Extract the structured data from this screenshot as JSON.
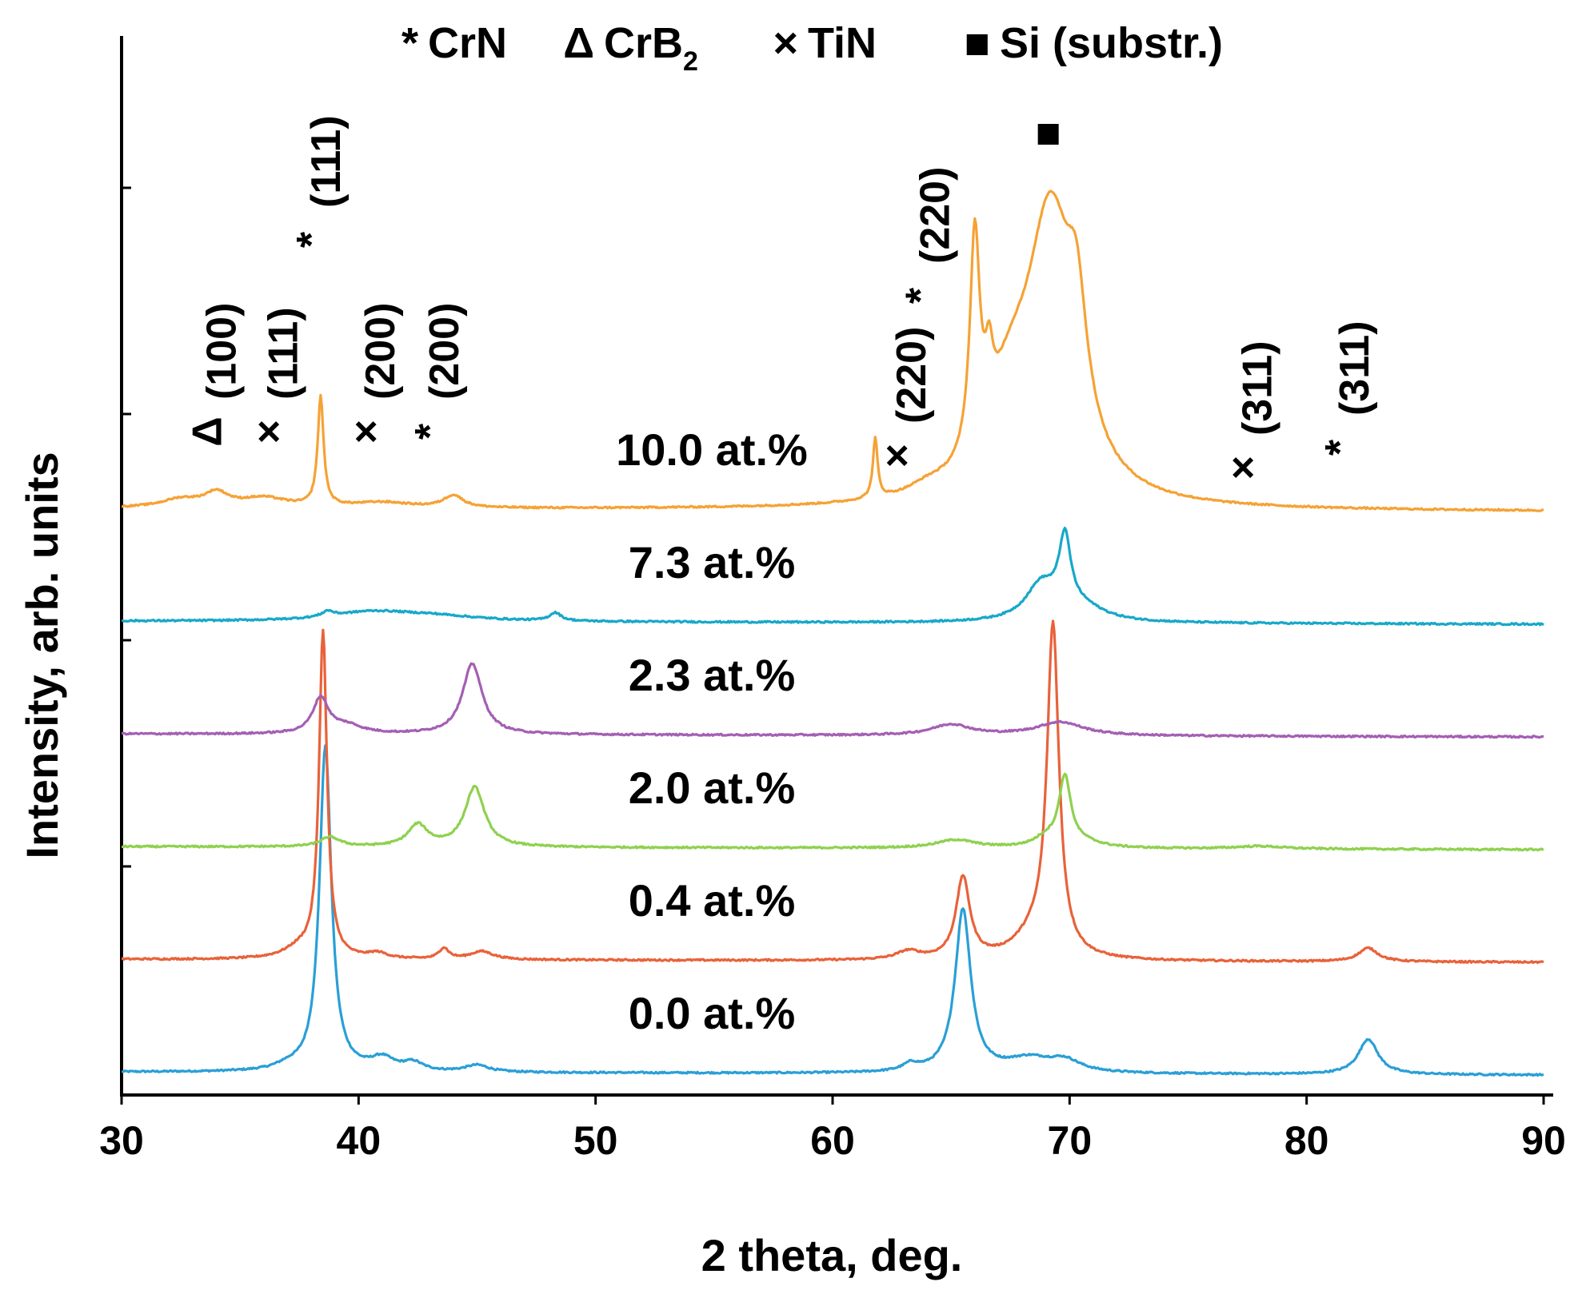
{
  "chart_data": {
    "type": "line",
    "title": "",
    "xlabel": "2 theta, deg.",
    "ylabel": "Intensity, arb. units",
    "xlim": [
      30,
      90
    ],
    "x_ticks": [
      "30",
      "40",
      "50",
      "60",
      "70",
      "80",
      "90"
    ],
    "y_ticks_labeled": false,
    "legend": [
      {
        "symbol": "*",
        "symbol_name": "asterisk",
        "label": "CrN",
        "label_sub": "",
        "color": "#1f3a8a"
      },
      {
        "symbol": "Δ",
        "symbol_name": "triangle",
        "label": "CrB",
        "label_sub": "2",
        "color": "#000000"
      },
      {
        "symbol": "×",
        "symbol_name": "cross",
        "label": "TiN",
        "label_sub": "",
        "color": "#1f5f7a"
      },
      {
        "symbol": "■",
        "symbol_name": "square",
        "label": "Si (substr.)",
        "label_sub": "",
        "color": "#000000"
      }
    ],
    "series": [
      {
        "name": "0.0 at.%",
        "color": "#2a9fd6",
        "baseline": 0.0,
        "background": 0.2,
        "peaks": [
          [
            37.0,
            0.15,
            0.6
          ],
          [
            38.6,
            12.0,
            0.3
          ],
          [
            41.0,
            0.45,
            0.6
          ],
          [
            42.3,
            0.3,
            0.5
          ],
          [
            45.0,
            0.25,
            0.6
          ],
          [
            63.3,
            0.25,
            0.4
          ],
          [
            65.5,
            6.0,
            0.4
          ],
          [
            68.3,
            0.5,
            1.2
          ],
          [
            69.8,
            0.4,
            0.8
          ],
          [
            82.6,
            1.3,
            0.5
          ]
        ]
      },
      {
        "name": "0.4 at.%",
        "color": "#e8623a",
        "baseline": 1.0,
        "background": 0.2,
        "peaks": [
          [
            37.5,
            0.35,
            0.8
          ],
          [
            38.5,
            12.0,
            0.2
          ],
          [
            40.8,
            0.2,
            0.5
          ],
          [
            43.6,
            0.4,
            0.25
          ],
          [
            45.2,
            0.3,
            0.6
          ],
          [
            63.2,
            0.3,
            0.6
          ],
          [
            65.5,
            3.0,
            0.35
          ],
          [
            68.5,
            0.8,
            1.0
          ],
          [
            69.3,
            12.0,
            0.3
          ],
          [
            82.6,
            0.5,
            0.5
          ]
        ]
      },
      {
        "name": "2.0 at.%",
        "color": "#8fd14f",
        "baseline": 2.0,
        "background": 0.2,
        "peaks": [
          [
            38.8,
            0.35,
            0.5
          ],
          [
            42.5,
            0.8,
            0.5
          ],
          [
            44.9,
            2.2,
            0.5
          ],
          [
            65.2,
            0.3,
            1.0
          ],
          [
            69.0,
            0.3,
            0.6
          ],
          [
            69.8,
            2.5,
            0.3
          ],
          [
            70.5,
            0.2,
            1.0
          ],
          [
            78.0,
            0.1,
            1.2
          ]
        ]
      },
      {
        "name": "2.3 at.%",
        "color": "#a45fb3",
        "baseline": 3.0,
        "background": 0.2,
        "peaks": [
          [
            38.4,
            1.3,
            0.4
          ],
          [
            39.5,
            0.3,
            0.8
          ],
          [
            44.8,
            2.6,
            0.5
          ],
          [
            65.0,
            0.4,
            1.0
          ],
          [
            69.6,
            0.5,
            1.2
          ]
        ]
      },
      {
        "name": "7.3 at.%",
        "color": "#17a8c9",
        "baseline": 4.0,
        "background": 0.2,
        "peaks": [
          [
            38.7,
            0.2,
            0.3
          ],
          [
            40.5,
            0.3,
            2.0
          ],
          [
            43.0,
            0.2,
            2.5
          ],
          [
            48.3,
            0.3,
            0.3
          ],
          [
            68.8,
            1.3,
            0.8
          ],
          [
            69.8,
            2.6,
            0.3
          ],
          [
            70.5,
            0.5,
            1.2
          ]
        ]
      },
      {
        "name": "10.0 at.%",
        "color": "#f5a235",
        "baseline": 5.0,
        "background": 0.2,
        "peaks": [
          [
            32.5,
            0.3,
            1.0
          ],
          [
            34.0,
            0.5,
            0.6
          ],
          [
            36.0,
            0.35,
            1.2
          ],
          [
            38.4,
            4.0,
            0.15
          ],
          [
            41.0,
            0.2,
            1.5
          ],
          [
            44.0,
            0.45,
            0.5
          ],
          [
            61.8,
            2.2,
            0.12
          ],
          [
            64.0,
            0.3,
            1.0
          ],
          [
            66.0,
            8.0,
            0.25
          ],
          [
            66.6,
            2.0,
            0.2
          ],
          [
            67.5,
            3.0,
            1.2
          ],
          [
            69.2,
            10.0,
            1.2
          ],
          [
            70.3,
            4.0,
            0.5
          ]
        ]
      }
    ],
    "peak_annotations": [
      {
        "symbol": "Δ",
        "label": "(100)",
        "x": 34.2
      },
      {
        "symbol": "×",
        "label": "(111)",
        "x": 36.8
      },
      {
        "symbol": "*",
        "label": "(111)",
        "x": 38.6
      },
      {
        "symbol": "×",
        "label": "(200)",
        "x": 40.9
      },
      {
        "symbol": "*",
        "label": "(200)",
        "x": 43.6
      },
      {
        "symbol": "×",
        "label": "(220)",
        "x": 63.3
      },
      {
        "symbol": "*",
        "label": "(220)",
        "x": 64.3
      },
      {
        "symbol": "×",
        "label": "(311)",
        "x": 77.9
      },
      {
        "symbol": "*",
        "label": "(311)",
        "x": 82.0
      },
      {
        "symbol": "■",
        "label": "",
        "x": 69.1
      }
    ]
  }
}
